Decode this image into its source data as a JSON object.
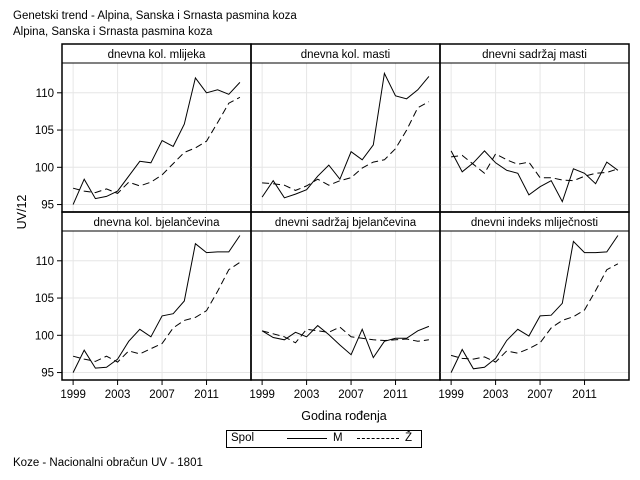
{
  "header": {
    "title": "Genetski trend - Alpina, Sanska i Srnasta pasmina koza",
    "subtitle": "Alpina, Sanska i Srnasta pasmina koza"
  },
  "footnote": "Koze - Nacionalni obračun UV - 1801",
  "legend": {
    "title": "Spol",
    "items": [
      {
        "label": "M",
        "style": "solid"
      },
      {
        "label": "Ž",
        "style": "dashed"
      }
    ]
  },
  "chart_data": {
    "type": "line",
    "ylabel": "UV/12",
    "xlabel": "Godina rođenja",
    "x_ticks": [
      1999,
      2003,
      2007,
      2011
    ],
    "y_ticks": [
      95,
      100,
      105,
      110
    ],
    "xlim": [
      1998,
      2015
    ],
    "ylim": [
      94,
      114
    ],
    "grid": true,
    "legend_position": "bottom",
    "line_color": "#000000",
    "grid_color": "#e6e6e6",
    "panels": [
      {
        "title": "dnevna kol. mlijeka",
        "series": [
          {
            "name": "M",
            "x": [
              1999,
              2000,
              2001,
              2002,
              2003,
              2004,
              2005,
              2006,
              2007,
              2008,
              2009,
              2010,
              2011,
              2012,
              2013,
              2014
            ],
            "y": [
              95.0,
              98.4,
              95.8,
              96.1,
              96.8,
              98.8,
              100.8,
              100.6,
              103.6,
              102.8,
              105.8,
              112.0,
              110.0,
              110.4,
              109.8,
              111.4
            ]
          },
          {
            "name": "Ž",
            "x": [
              1999,
              2000,
              2001,
              2002,
              2003,
              2004,
              2005,
              2006,
              2007,
              2008,
              2009,
              2010,
              2011,
              2012,
              2013,
              2014
            ],
            "y": [
              97.2,
              96.8,
              96.6,
              97.1,
              96.5,
              98.0,
              97.5,
              98.0,
              99.0,
              100.5,
              102.0,
              102.6,
              103.5,
              106.0,
              108.6,
              109.4
            ]
          }
        ]
      },
      {
        "title": "dnevna kol. masti",
        "series": [
          {
            "name": "M",
            "x": [
              1999,
              2000,
              2001,
              2002,
              2003,
              2004,
              2005,
              2006,
              2007,
              2008,
              2009,
              2010,
              2011,
              2012,
              2013,
              2014
            ],
            "y": [
              96.0,
              98.2,
              95.9,
              96.4,
              97.0,
              98.8,
              100.3,
              98.4,
              102.1,
              101.0,
              103.0,
              112.6,
              109.6,
              109.2,
              110.4,
              112.2
            ]
          },
          {
            "name": "Ž",
            "x": [
              1999,
              2000,
              2001,
              2002,
              2003,
              2004,
              2005,
              2006,
              2007,
              2008,
              2009,
              2010,
              2011,
              2012,
              2013,
              2014
            ],
            "y": [
              97.9,
              97.8,
              97.6,
              96.9,
              97.5,
              98.4,
              97.6,
              98.2,
              98.6,
              99.9,
              100.7,
              101.0,
              102.5,
              105.0,
              108.0,
              108.8
            ]
          }
        ]
      },
      {
        "title": "dnevni sadržaj masti",
        "series": [
          {
            "name": "M",
            "x": [
              1999,
              2000,
              2001,
              2002,
              2003,
              2004,
              2005,
              2006,
              2007,
              2008,
              2009,
              2010,
              2011,
              2012,
              2013,
              2014
            ],
            "y": [
              102.2,
              99.4,
              100.6,
              102.2,
              100.6,
              99.6,
              99.2,
              96.3,
              97.4,
              98.2,
              95.4,
              99.8,
              99.2,
              97.8,
              100.7,
              99.6
            ]
          },
          {
            "name": "Ž",
            "x": [
              1999,
              2000,
              2001,
              2002,
              2003,
              2004,
              2005,
              2006,
              2007,
              2008,
              2009,
              2010,
              2011,
              2012,
              2013,
              2014
            ],
            "y": [
              101.4,
              101.6,
              100.4,
              99.2,
              101.8,
              101.0,
              100.4,
              100.7,
              98.6,
              98.6,
              98.3,
              98.2,
              98.8,
              99.2,
              99.3,
              99.8
            ]
          }
        ]
      },
      {
        "title": "dnevna kol. bjelančevina",
        "series": [
          {
            "name": "M",
            "x": [
              1999,
              2000,
              2001,
              2002,
              2003,
              2004,
              2005,
              2006,
              2007,
              2008,
              2009,
              2010,
              2011,
              2012,
              2013,
              2014
            ],
            "y": [
              95.0,
              98.0,
              95.6,
              95.7,
              96.8,
              99.2,
              100.8,
              99.8,
              102.6,
              102.9,
              104.6,
              112.3,
              111.1,
              111.2,
              111.2,
              113.4
            ]
          },
          {
            "name": "Ž",
            "x": [
              1999,
              2000,
              2001,
              2002,
              2003,
              2004,
              2005,
              2006,
              2007,
              2008,
              2009,
              2010,
              2011,
              2012,
              2013,
              2014
            ],
            "y": [
              97.2,
              96.8,
              96.5,
              97.2,
              96.4,
              97.9,
              97.5,
              98.2,
              98.9,
              101.0,
              102.0,
              102.4,
              103.3,
              105.9,
              108.8,
              109.8
            ]
          }
        ]
      },
      {
        "title": "dnevni sadržaj bjelančevina",
        "series": [
          {
            "name": "M",
            "x": [
              1999,
              2000,
              2001,
              2002,
              2003,
              2004,
              2005,
              2006,
              2007,
              2008,
              2009,
              2010,
              2011,
              2012,
              2013,
              2014
            ],
            "y": [
              100.6,
              99.7,
              99.4,
              100.4,
              99.8,
              101.3,
              100.1,
              98.7,
              97.4,
              100.8,
              97.0,
              99.2,
              99.6,
              99.6,
              100.6,
              101.2
            ]
          },
          {
            "name": "Ž",
            "x": [
              1999,
              2000,
              2001,
              2002,
              2003,
              2004,
              2005,
              2006,
              2007,
              2008,
              2009,
              2010,
              2011,
              2012,
              2013,
              2014
            ],
            "y": [
              100.6,
              100.2,
              99.8,
              99.0,
              100.8,
              100.6,
              100.4,
              101.1,
              99.8,
              99.6,
              99.4,
              99.3,
              99.4,
              99.5,
              99.2,
              99.4
            ]
          }
        ]
      },
      {
        "title": "dnevni indeks mliječnosti",
        "series": [
          {
            "name": "M",
            "x": [
              1999,
              2000,
              2001,
              2002,
              2003,
              2004,
              2005,
              2006,
              2007,
              2008,
              2009,
              2010,
              2011,
              2012,
              2013,
              2014
            ],
            "y": [
              95.0,
              98.1,
              95.5,
              95.7,
              96.9,
              99.3,
              100.8,
              99.9,
              102.6,
              102.7,
              104.3,
              112.6,
              111.1,
              111.1,
              111.2,
              113.4
            ]
          },
          {
            "name": "Ž",
            "x": [
              1999,
              2000,
              2001,
              2002,
              2003,
              2004,
              2005,
              2006,
              2007,
              2008,
              2009,
              2010,
              2011,
              2012,
              2013,
              2014
            ],
            "y": [
              97.3,
              96.9,
              96.8,
              97.1,
              96.4,
              97.9,
              97.6,
              98.2,
              99.0,
              101.0,
              102.0,
              102.5,
              103.4,
              106.0,
              108.8,
              109.6
            ]
          }
        ]
      }
    ]
  }
}
